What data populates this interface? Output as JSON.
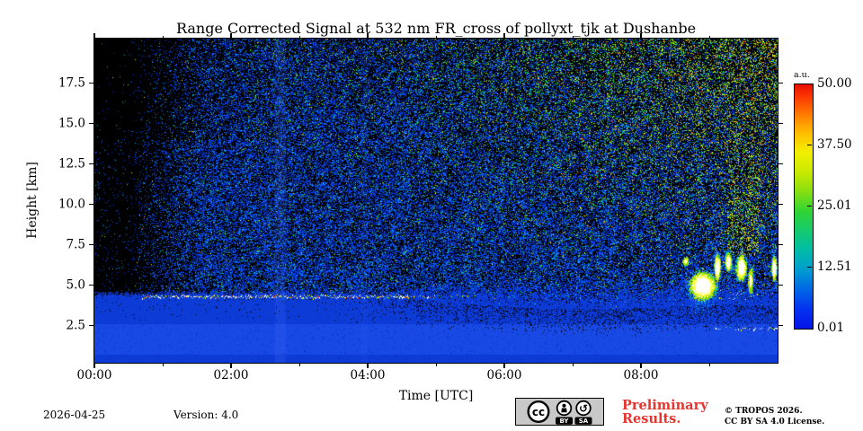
{
  "chart_data": {
    "type": "heatmap",
    "title": "Range Corrected Signal at 532 nm FR_cross of pollyxt_tjk at Dushanbe",
    "xlabel": "Time [UTC]",
    "ylabel": "Height [km]",
    "x_ticks": [
      "00:00",
      "02:00",
      "04:00",
      "06:00",
      "08:00"
    ],
    "x_tick_hours": [
      0,
      2,
      4,
      6,
      8
    ],
    "x_minor_hours": [
      1,
      3,
      5,
      7,
      9
    ],
    "x_range_hours": [
      0,
      10
    ],
    "y_ticks": [
      "2.5",
      "5.0",
      "7.5",
      "10.0",
      "12.5",
      "15.0",
      "17.5"
    ],
    "y_tick_km": [
      2.5,
      5.0,
      7.5,
      10.0,
      12.5,
      15.0,
      17.5
    ],
    "y_range_km": [
      0.2,
      20.26
    ],
    "value_unit": "a.u.",
    "value_range": [
      0.01,
      50.0
    ],
    "colorbar": {
      "title": "a.u.",
      "tick_labels": [
        "50.00",
        "37.50",
        "25.01",
        "12.51",
        "0.01"
      ],
      "tick_values": [
        50.0,
        37.5,
        25.01,
        12.51,
        0.01
      ],
      "stops": [
        [
          0,
          "#0414e6"
        ],
        [
          0.08,
          "#0532f0"
        ],
        [
          0.16,
          "#0066e6"
        ],
        [
          0.24,
          "#009cd0"
        ],
        [
          0.32,
          "#00bca8"
        ],
        [
          0.4,
          "#14ca6e"
        ],
        [
          0.48,
          "#30d434"
        ],
        [
          0.56,
          "#86de12"
        ],
        [
          0.64,
          "#c8ea00"
        ],
        [
          0.72,
          "#f2f000"
        ],
        [
          0.8,
          "#ffbe00"
        ],
        [
          0.88,
          "#ff7800"
        ],
        [
          0.95,
          "#fb3600"
        ],
        [
          1,
          "#e81000"
        ]
      ]
    },
    "features": {
      "seed": 1337,
      "background": "#000000",
      "solid_fill": "#0d3bd6",
      "solid_fill_bright": "#1849e4",
      "solid_bright_band_km": [
        0.7,
        2.6
      ],
      "boundary_km": [
        [
          0,
          4.32
        ],
        [
          3,
          4.32
        ],
        [
          4.6,
          4.2
        ],
        [
          5.2,
          3.9
        ],
        [
          6.5,
          3.55
        ],
        [
          7.5,
          3.5
        ],
        [
          8.3,
          3.65
        ],
        [
          9.2,
          3.8
        ],
        [
          10,
          3.75
        ]
      ],
      "dither_km": [
        [
          0,
          0.35
        ],
        [
          4.3,
          0.5
        ],
        [
          5.5,
          1.8
        ],
        [
          7,
          2.1
        ],
        [
          10,
          1.9
        ]
      ],
      "noise": {
        "dark_until_hour": 0.55,
        "ramp_until_hour": 1.6,
        "sparse_density": 0.035,
        "base_density": 0.5,
        "cyan_fraction": 0.11,
        "palette": {
          "blue": "#0540e8",
          "blue2": "#0034c8",
          "blue3": "#2a5cff",
          "cyan": "#00b8d8",
          "green": "#2ed22e",
          "lime": "#8ce600",
          "yellow": "#e6e614",
          "orange": "#ff8c00",
          "red": "#ff2a00",
          "white": "#ffffff"
        }
      },
      "bright_bands": [
        {
          "hour": 2.72,
          "width_hour": 0.16,
          "alpha": 0.2
        },
        {
          "hour": 3.95,
          "width_hour": 0.1,
          "alpha": 0.09
        }
      ],
      "aerosol_layer": {
        "height_km": 4.32,
        "jitter_km": 0.1,
        "segments": [
          [
            0.7,
            4.6,
            0.88
          ],
          [
            4.6,
            5.05,
            0.32
          ],
          [
            5.1,
            5.65,
            0.08
          ],
          [
            6.8,
            7.3,
            0.05
          ]
        ]
      },
      "clouds": [
        {
          "t0": 8.6,
          "t1": 8.7,
          "h0": 6.2,
          "h1": 6.8,
          "strength": 0.45
        },
        {
          "t0": 8.68,
          "t1": 9.12,
          "h0": 4.0,
          "h1": 5.95,
          "strength": 1.0,
          "tail_km": 0.9
        },
        {
          "t0": 9.06,
          "t1": 9.17,
          "h0": 5.2,
          "h1": 7.05,
          "strength": 0.9
        },
        {
          "t0": 9.22,
          "t1": 9.33,
          "h0": 5.8,
          "h1": 7.1,
          "strength": 0.85
        },
        {
          "t0": 9.38,
          "t1": 9.55,
          "h0": 5.2,
          "h1": 7.0,
          "strength": 0.95
        },
        {
          "t0": 9.56,
          "t1": 9.64,
          "h0": 4.4,
          "h1": 6.2,
          "strength": 0.5
        },
        {
          "t0": 9.9,
          "t1": 9.99,
          "h0": 5.2,
          "h1": 6.9,
          "strength": 0.9
        }
      ],
      "cloud_specks": {
        "t0": 9.05,
        "t1": 9.7,
        "h0": 4.1,
        "h1": 4.7,
        "density": 0.04
      },
      "low_layer": {
        "t0": 9.05,
        "t1": 10,
        "height_km": 2.35,
        "coverage_start": 0.2,
        "coverage_end": 0.8
      },
      "green_streak": {
        "t0": 9.25,
        "t1": 9.72,
        "h_min_km": 6.8,
        "green_prob": 0.5
      }
    }
  },
  "footer": {
    "date": "2026-04-25",
    "version": "Version: 4.0",
    "preliminary_line1": "Preliminary",
    "preliminary_line2": "Results.",
    "copyright": "© TROPOS 2026.",
    "license": "CC BY SA 4.0 License.",
    "cc_badge": {
      "cc_text": "cc",
      "label_by": "BY",
      "label_sa": "SA",
      "sa_arrow": "↺"
    }
  }
}
